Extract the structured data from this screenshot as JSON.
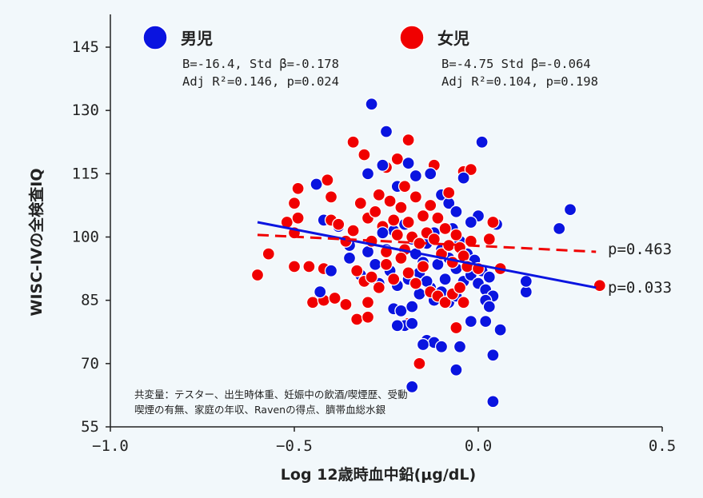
{
  "chart_data": {
    "type": "scatter",
    "xlabel": "Log 12歳時血中鉛(μg/dL)",
    "ylabel": "WISC-IVの全検査IQ",
    "xlim": [
      -1.0,
      0.5
    ],
    "ylim": [
      55,
      148
    ],
    "xticks": [
      -1.0,
      -0.5,
      0.0,
      0.5
    ],
    "xtick_labels": [
      "−1.0",
      "−0.5",
      "0.0",
      "0.5"
    ],
    "yticks": [
      55,
      70,
      85,
      100,
      115,
      130,
      145
    ],
    "ytick_labels": [
      "55",
      "70",
      "85",
      "100",
      "115",
      "130",
      "145"
    ],
    "grid": false,
    "legend_position": "top",
    "series": [
      {
        "name": "男児",
        "color": "#0a14e0",
        "stats": [
          "B=-16.4, Std β=-0.178",
          "Adj R²=0.146, p=0.024"
        ],
        "fit": {
          "x": [
            -0.6,
            0.32
          ],
          "y": [
            103.5,
            88.0
          ],
          "style": "solid"
        },
        "p_label": "p=0.033",
        "points": [
          [
            -0.29,
            131.5
          ],
          [
            -0.25,
            125.0
          ],
          [
            0.01,
            122.5
          ],
          [
            -0.26,
            117.0
          ],
          [
            -0.19,
            117.5
          ],
          [
            -0.17,
            114.5
          ],
          [
            -0.13,
            115.0
          ],
          [
            -0.04,
            114.0
          ],
          [
            -0.44,
            112.5
          ],
          [
            -0.3,
            115.0
          ],
          [
            -0.22,
            112.0
          ],
          [
            -0.1,
            110.0
          ],
          [
            0.25,
            106.5
          ],
          [
            0.22,
            102.0
          ],
          [
            0.05,
            103.0
          ],
          [
            0.0,
            105.0
          ],
          [
            -0.42,
            104.0
          ],
          [
            -0.38,
            102.5
          ],
          [
            -0.35,
            98.0
          ],
          [
            -0.3,
            96.5
          ],
          [
            -0.28,
            93.5
          ],
          [
            -0.25,
            97.0
          ],
          [
            -0.23,
            101.5
          ],
          [
            -0.21,
            95.0
          ],
          [
            -0.2,
            103.0
          ],
          [
            -0.18,
            99.5
          ],
          [
            -0.17,
            96.0
          ],
          [
            -0.16,
            91.5
          ],
          [
            -0.15,
            94.0
          ],
          [
            -0.14,
            98.5
          ],
          [
            -0.13,
            88.0
          ],
          [
            -0.12,
            101.0
          ],
          [
            -0.11,
            93.5
          ],
          [
            -0.1,
            97.0
          ],
          [
            -0.09,
            90.0
          ],
          [
            -0.08,
            95.0
          ],
          [
            -0.07,
            102.0
          ],
          [
            -0.06,
            92.5
          ],
          [
            -0.05,
            99.0
          ],
          [
            -0.04,
            89.5
          ],
          [
            -0.03,
            96.0
          ],
          [
            -0.02,
            91.0
          ],
          [
            -0.01,
            94.5
          ],
          [
            0.0,
            89.0
          ],
          [
            0.01,
            92.0
          ],
          [
            0.02,
            87.5
          ],
          [
            0.03,
            90.5
          ],
          [
            0.04,
            86.0
          ],
          [
            -0.32,
            91.0
          ],
          [
            -0.27,
            89.0
          ],
          [
            -0.24,
            92.0
          ],
          [
            -0.22,
            88.5
          ],
          [
            -0.19,
            90.0
          ],
          [
            -0.16,
            86.5
          ],
          [
            -0.14,
            89.5
          ],
          [
            -0.12,
            85.0
          ],
          [
            -0.1,
            87.0
          ],
          [
            -0.08,
            84.5
          ],
          [
            -0.06,
            86.0
          ],
          [
            0.02,
            85.0
          ],
          [
            0.03,
            83.5
          ],
          [
            -0.23,
            83.0
          ],
          [
            -0.21,
            82.5
          ],
          [
            -0.18,
            83.5
          ],
          [
            -0.2,
            79.0
          ],
          [
            -0.18,
            79.5
          ],
          [
            -0.22,
            79.0
          ],
          [
            -0.02,
            80.0
          ],
          [
            0.02,
            80.0
          ],
          [
            0.06,
            78.0
          ],
          [
            0.13,
            87.0
          ],
          [
            0.13,
            89.5
          ],
          [
            -0.14,
            75.5
          ],
          [
            -0.12,
            75.0
          ],
          [
            -0.15,
            74.5
          ],
          [
            -0.05,
            74.0
          ],
          [
            -0.1,
            74.0
          ],
          [
            0.04,
            72.0
          ],
          [
            -0.06,
            68.5
          ],
          [
            -0.18,
            64.5
          ],
          [
            0.04,
            61.0
          ],
          [
            -0.43,
            87.0
          ],
          [
            -0.4,
            92.0
          ],
          [
            -0.35,
            95.0
          ],
          [
            -0.26,
            101.0
          ],
          [
            -0.08,
            108.0
          ],
          [
            -0.06,
            106.0
          ],
          [
            -0.02,
            103.5
          ]
        ]
      },
      {
        "name": "女児",
        "color": "#f00000",
        "stats": [
          "B=-4.75 Std β=-0.064",
          "Adj R²=0.104, p=0.198"
        ],
        "fit": {
          "x": [
            -0.6,
            0.32
          ],
          "y": [
            100.5,
            96.5
          ],
          "style": "dashed"
        },
        "p_label": "p=0.463",
        "points": [
          [
            -0.34,
            122.5
          ],
          [
            -0.31,
            119.5
          ],
          [
            -0.22,
            118.5
          ],
          [
            -0.25,
            116.5
          ],
          [
            -0.19,
            123.0
          ],
          [
            -0.12,
            117.0
          ],
          [
            -0.04,
            115.5
          ],
          [
            -0.02,
            116.0
          ],
          [
            -0.5,
            108.0
          ],
          [
            -0.49,
            111.5
          ],
          [
            -0.41,
            113.5
          ],
          [
            -0.4,
            109.5
          ],
          [
            -0.52,
            103.5
          ],
          [
            -0.49,
            104.5
          ],
          [
            -0.5,
            101.0
          ],
          [
            -0.57,
            96.0
          ],
          [
            -0.6,
            91.0
          ],
          [
            -0.5,
            93.0
          ],
          [
            -0.46,
            93.0
          ],
          [
            -0.42,
            92.5
          ],
          [
            -0.43,
            86.0
          ],
          [
            -0.45,
            84.5
          ],
          [
            -0.42,
            85.0
          ],
          [
            -0.39,
            85.5
          ],
          [
            -0.36,
            84.0
          ],
          [
            -0.33,
            80.5
          ],
          [
            -0.3,
            81.0
          ],
          [
            -0.3,
            84.5
          ],
          [
            -0.19,
            79.5
          ],
          [
            -0.16,
            70.0
          ],
          [
            -0.06,
            78.5
          ],
          [
            0.33,
            88.5
          ],
          [
            -0.4,
            104.0
          ],
          [
            -0.38,
            103.0
          ],
          [
            -0.36,
            99.0
          ],
          [
            -0.34,
            101.5
          ],
          [
            -0.32,
            108.0
          ],
          [
            -0.3,
            104.5
          ],
          [
            -0.29,
            99.0
          ],
          [
            -0.28,
            106.0
          ],
          [
            -0.27,
            110.0
          ],
          [
            -0.26,
            102.5
          ],
          [
            -0.25,
            96.5
          ],
          [
            -0.24,
            108.5
          ],
          [
            -0.23,
            104.0
          ],
          [
            -0.22,
            100.5
          ],
          [
            -0.21,
            107.0
          ],
          [
            -0.2,
            97.0
          ],
          [
            -0.19,
            103.5
          ],
          [
            -0.18,
            100.0
          ],
          [
            -0.17,
            109.5
          ],
          [
            -0.16,
            98.5
          ],
          [
            -0.15,
            105.0
          ],
          [
            -0.14,
            101.0
          ],
          [
            -0.13,
            107.5
          ],
          [
            -0.12,
            99.5
          ],
          [
            -0.11,
            104.5
          ],
          [
            -0.1,
            96.0
          ],
          [
            -0.09,
            102.0
          ],
          [
            -0.08,
            98.0
          ],
          [
            -0.07,
            94.0
          ],
          [
            -0.06,
            100.5
          ],
          [
            -0.05,
            97.5
          ],
          [
            -0.04,
            95.5
          ],
          [
            -0.03,
            93.0
          ],
          [
            -0.02,
            99.0
          ],
          [
            0.0,
            92.5
          ],
          [
            0.03,
            99.5
          ],
          [
            0.04,
            103.5
          ],
          [
            0.06,
            92.5
          ],
          [
            -0.33,
            92.0
          ],
          [
            -0.31,
            89.5
          ],
          [
            -0.29,
            90.5
          ],
          [
            -0.27,
            88.0
          ],
          [
            -0.25,
            93.5
          ],
          [
            -0.23,
            90.0
          ],
          [
            -0.21,
            95.0
          ],
          [
            -0.19,
            91.5
          ],
          [
            -0.17,
            89.0
          ],
          [
            -0.15,
            93.0
          ],
          [
            -0.13,
            87.0
          ],
          [
            -0.11,
            86.0
          ],
          [
            -0.09,
            84.5
          ],
          [
            -0.07,
            86.5
          ],
          [
            -0.05,
            88.0
          ],
          [
            -0.04,
            84.5
          ],
          [
            -0.08,
            110.5
          ],
          [
            -0.2,
            112.0
          ]
        ]
      }
    ],
    "annotation": [
      "共変量：テスター、出生時体重、妊娠中の飲酒/喫煙歴、受動",
      "喫煙の有無、家庭の年収、Ravenの得点、臍帯血総水銀"
    ]
  }
}
